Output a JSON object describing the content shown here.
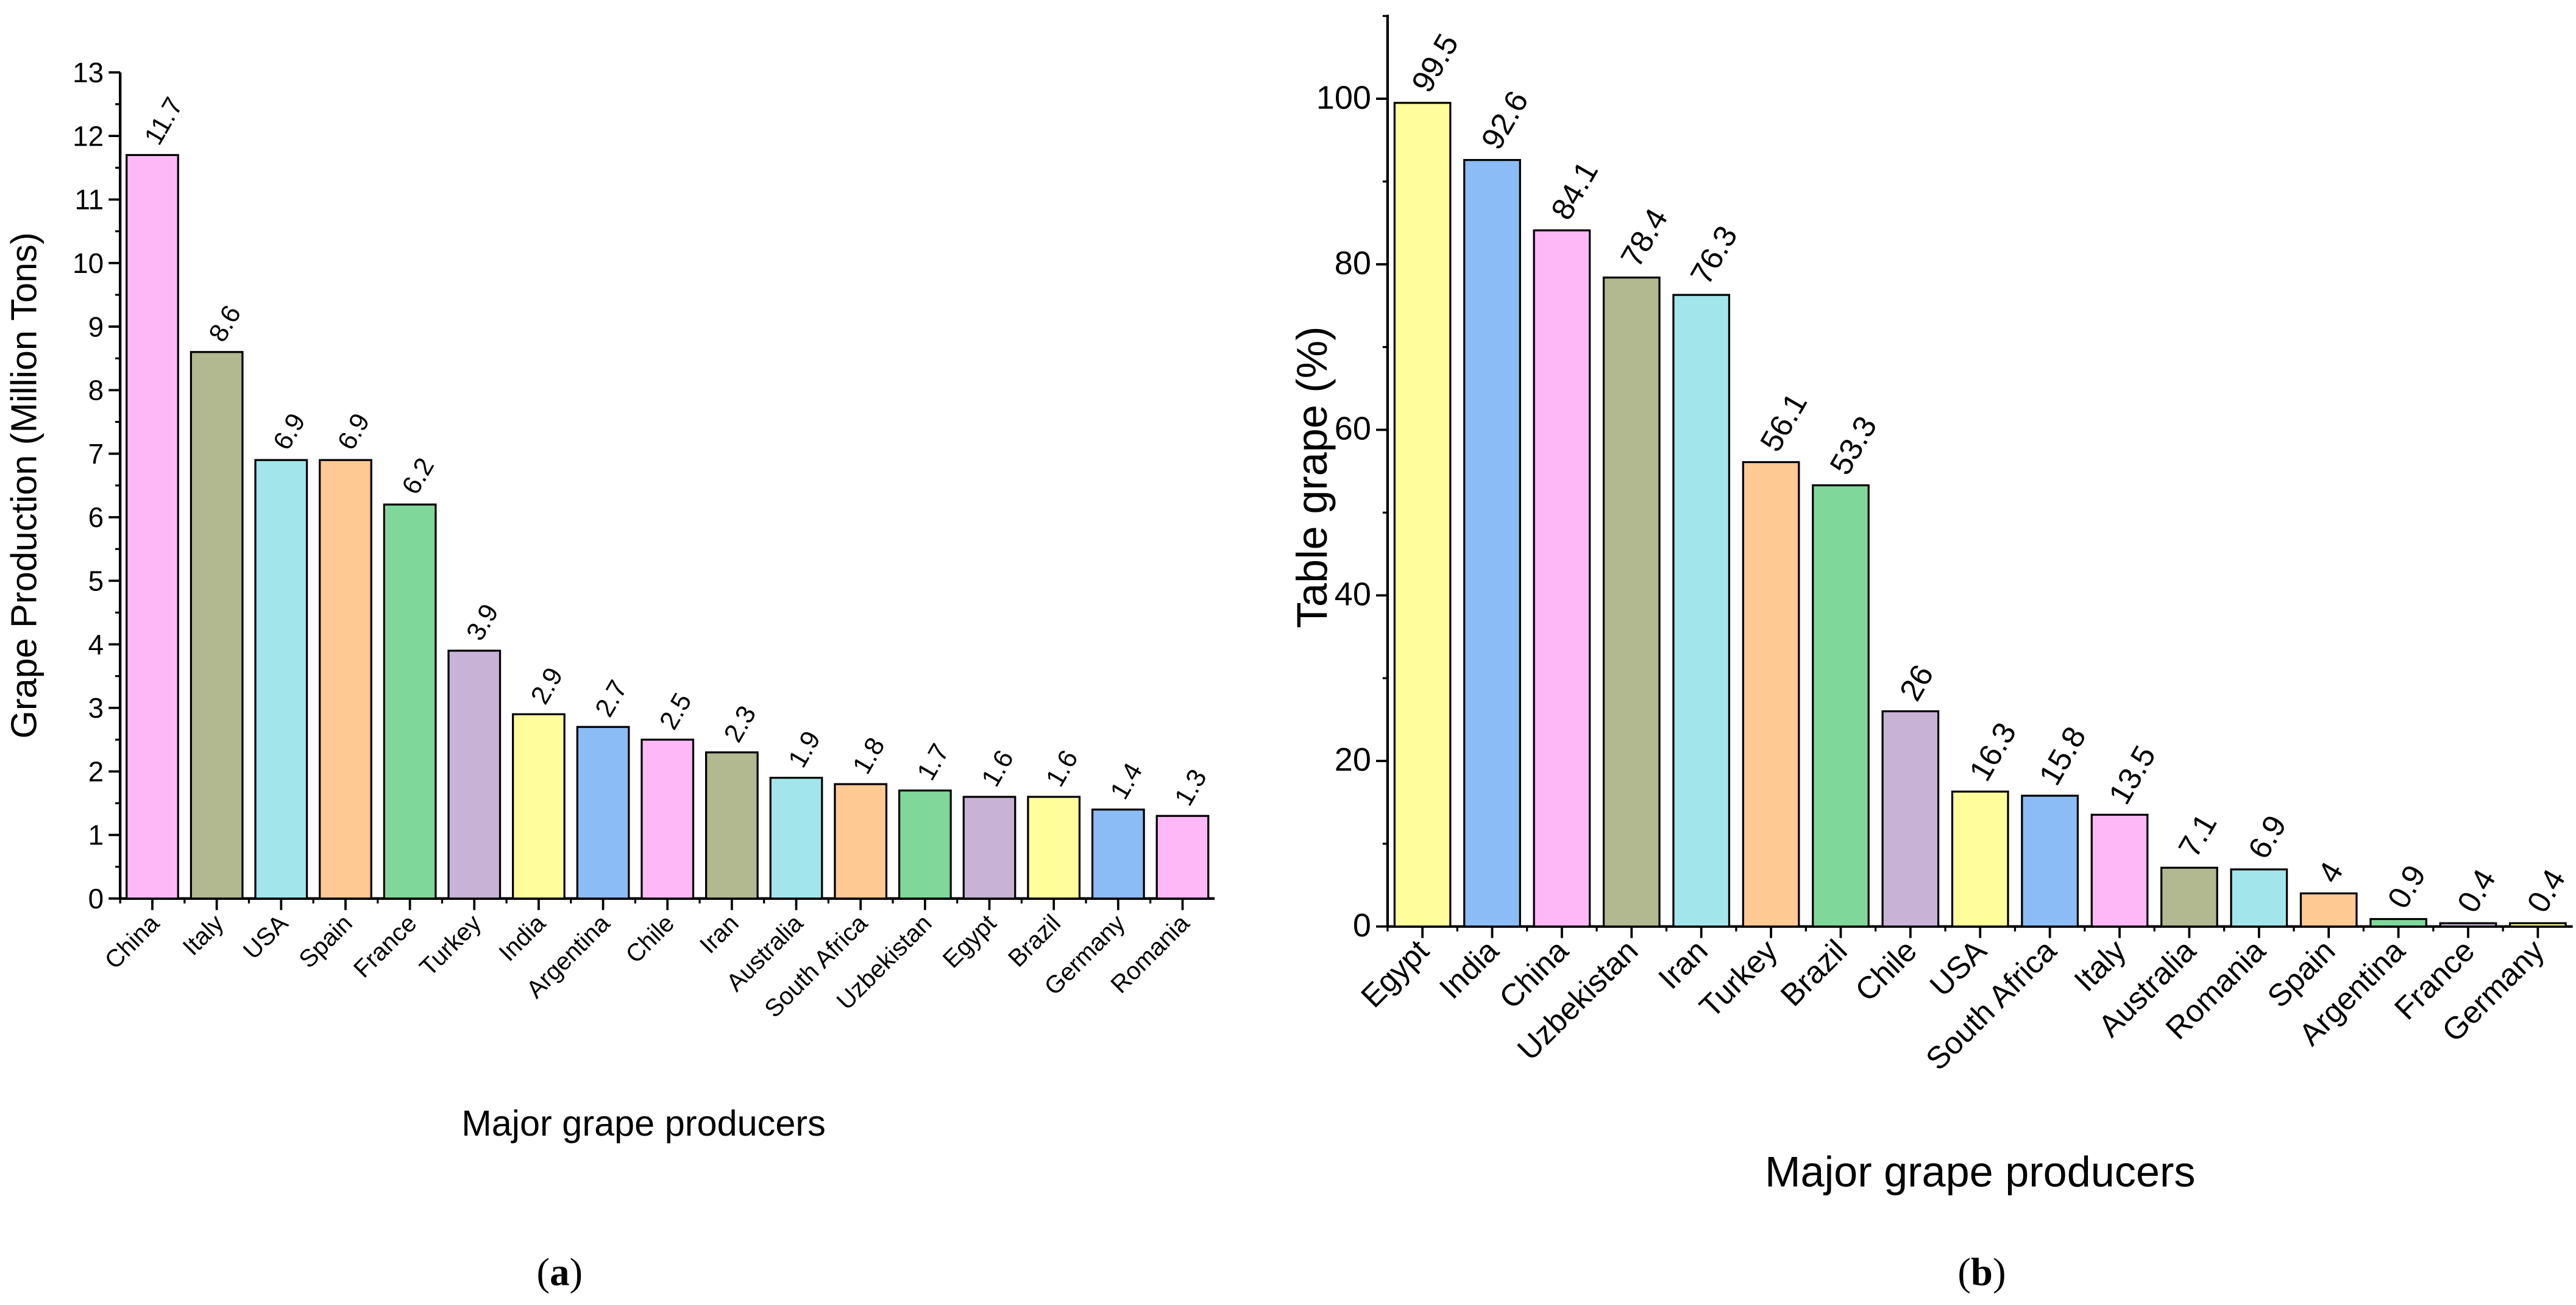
{
  "chart_data": [
    {
      "type": "bar",
      "panel": "(a)",
      "panel_letter": "a",
      "categories": [
        "China",
        "Italy",
        "USA",
        "Spain",
        "France",
        "Turkey",
        "India",
        "Argentina",
        "Chile",
        "Iran",
        "Australia",
        "South Africa",
        "Uzbekistan",
        "Egypt",
        "Brazil",
        "Germany",
        "Romania"
      ],
      "values": [
        11.7,
        8.6,
        6.9,
        6.9,
        6.2,
        3.9,
        2.9,
        2.7,
        2.5,
        2.3,
        1.9,
        1.8,
        1.7,
        1.6,
        1.6,
        1.4,
        1.3
      ],
      "value_labels": [
        "11.7",
        "8.6",
        "6.9",
        "6.9",
        "6.2",
        "3.9",
        "2.9",
        "2.7",
        "2.5",
        "2.3",
        "1.9",
        "1.8",
        "1.7",
        "1.6",
        "1.6",
        "1.4",
        "1.3"
      ],
      "colors": [
        "#FFB8F7",
        "#B2B88F",
        "#A2E6EC",
        "#FFC994",
        "#7FD89A",
        "#C8B2D6",
        "#FFFE9B",
        "#8CBCF5",
        "#FFB8F7",
        "#B2B88F",
        "#A2E6EC",
        "#FFC994",
        "#7FD89A",
        "#C8B2D6",
        "#FFFE9B",
        "#8CBCF5",
        "#FFB8F7"
      ],
      "xlabel": "Major grape producers",
      "ylabel": "Grape Production (Million Tons)",
      "ylim": [
        0,
        13
      ],
      "yticks": [
        0,
        1,
        2,
        3,
        4,
        5,
        6,
        7,
        8,
        9,
        10,
        11,
        12,
        13
      ],
      "grid": false
    },
    {
      "type": "bar",
      "panel": "(b)",
      "panel_letter": "b",
      "categories": [
        "Egypt",
        "India",
        "China",
        "Uzbekistan",
        "Iran",
        "Turkey",
        "Brazil",
        "Chile",
        "USA",
        "South Africa",
        "Italy",
        "Australia",
        "Romania",
        "Spain",
        "Argentina",
        "France",
        "Germany"
      ],
      "values": [
        99.5,
        92.6,
        84.1,
        78.4,
        76.3,
        56.1,
        53.3,
        26,
        16.3,
        15.8,
        13.5,
        7.1,
        6.9,
        4,
        0.9,
        0.4,
        0.4
      ],
      "value_labels": [
        "99.5",
        "92.6",
        "84.1",
        "78.4",
        "76.3",
        "56.1",
        "53.3",
        "26",
        "16.3",
        "15.8",
        "13.5",
        "7.1",
        "6.9",
        "4",
        "0.9",
        "0.4",
        "0.4"
      ],
      "colors": [
        "#FFFE9B",
        "#8CBCF5",
        "#FFB8F7",
        "#B2B88F",
        "#A2E6EC",
        "#FFC994",
        "#7FD89A",
        "#C8B2D6",
        "#FFFE9B",
        "#8CBCF5",
        "#FFB8F7",
        "#B2B88F",
        "#A2E6EC",
        "#FFC994",
        "#7FD89A",
        "#C8B2D6",
        "#FFFE9B"
      ],
      "xlabel": "Major grape producers",
      "ylabel": "Table grape (%)",
      "ylim": [
        0,
        110
      ],
      "yticks": [
        0,
        20,
        40,
        60,
        80,
        100
      ],
      "grid": false
    }
  ]
}
